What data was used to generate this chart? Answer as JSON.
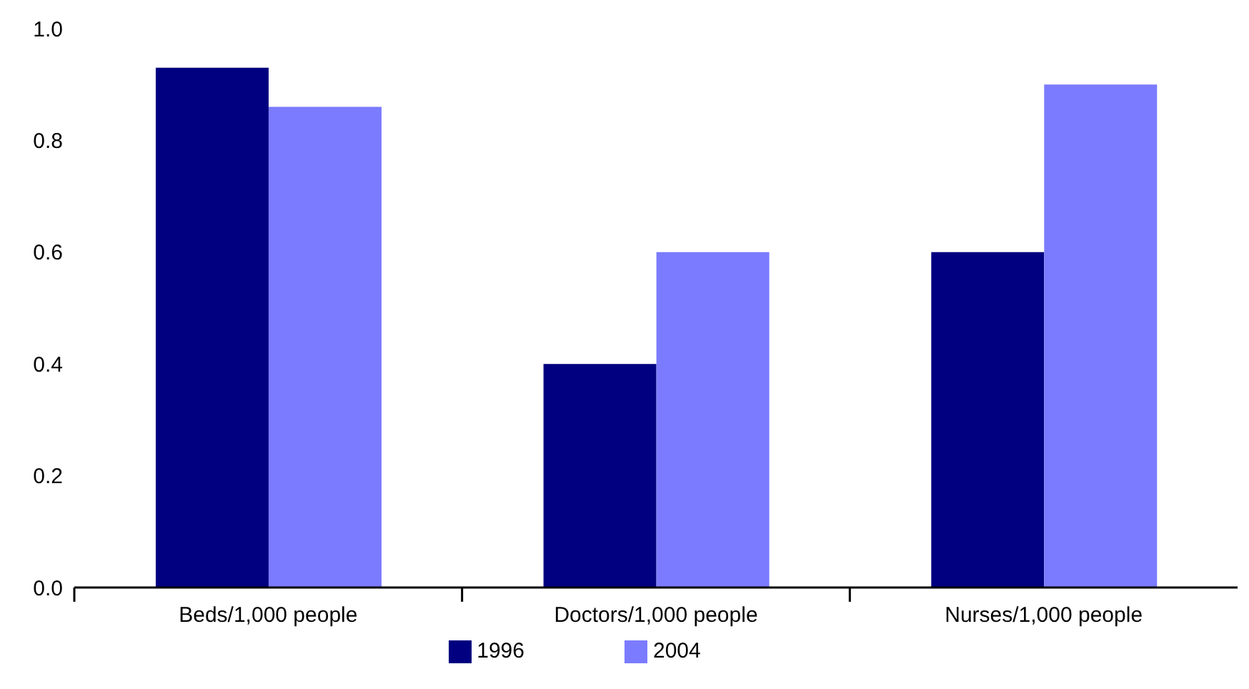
{
  "chart_data": {
    "type": "bar",
    "categories": [
      "Beds/1,000 people",
      "Doctors/1,000 people",
      "Nurses/1,000 people"
    ],
    "series": [
      {
        "name": "1996",
        "color": "#000080",
        "values": [
          0.93,
          0.4,
          0.6
        ]
      },
      {
        "name": "2004",
        "color": "#7b7bff",
        "values": [
          0.86,
          0.6,
          0.9
        ]
      }
    ],
    "ylim": [
      0,
      1
    ],
    "yticks": [
      {
        "value": 0,
        "label": "0.0"
      },
      {
        "value": 0.2,
        "label": "0.2"
      },
      {
        "value": 0.4,
        "label": "0.4"
      },
      {
        "value": 0.6,
        "label": "0.6"
      },
      {
        "value": 0.8,
        "label": "0.8"
      },
      {
        "value": 1,
        "label": "1.0"
      }
    ],
    "grid": false,
    "legend": "bottom"
  }
}
